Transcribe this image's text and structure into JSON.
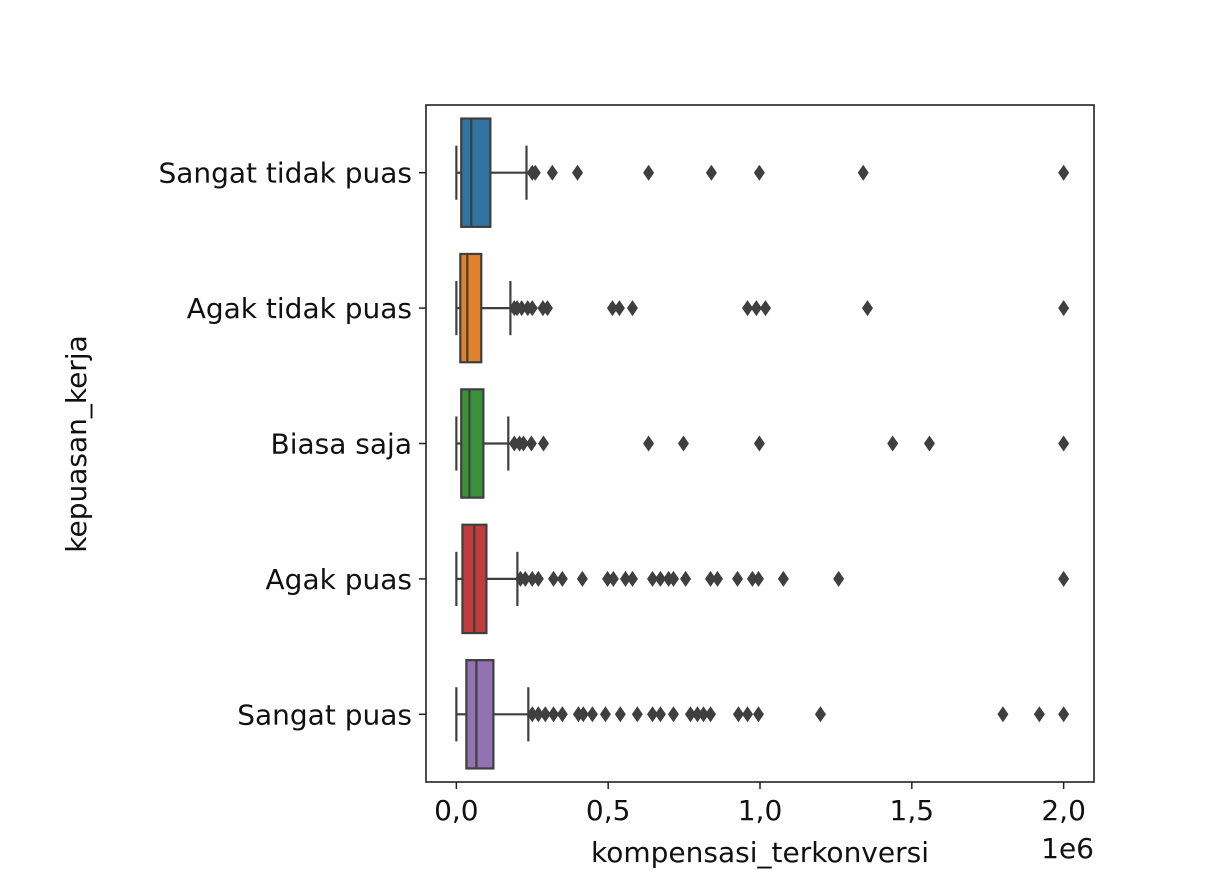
{
  "chart_data": {
    "type": "boxplot",
    "orientation": "horizontal",
    "title": "",
    "xlabel": "kompensasi_terkonversi",
    "ylabel": "kepuasan_kerja",
    "x_offset_label": "1e6",
    "xlim": [
      -100000,
      2100000
    ],
    "x_ticks": [
      0,
      500000,
      1000000,
      1500000,
      2000000
    ],
    "x_tick_labels": [
      "0,0",
      "0,5",
      "1,0",
      "1,5",
      "2,0"
    ],
    "grid": false,
    "line_color": "#3f3f3f",
    "categories": [
      {
        "name": "Sangat tidak puas",
        "color": "#3274a1",
        "whisker_low": 0,
        "q1": 16000,
        "median": 49000,
        "q3": 112000,
        "whisker_high": 231000,
        "outliers": [
          250000,
          260000,
          316000,
          399000,
          633000,
          840000,
          998000,
          1340000,
          2000000
        ]
      },
      {
        "name": "Agak tidak puas",
        "color": "#e1812c",
        "whisker_low": 0,
        "q1": 13000,
        "median": 36000,
        "q3": 82000,
        "whisker_high": 178000,
        "outliers": [
          191000,
          200000,
          215000,
          235000,
          250000,
          285000,
          300000,
          514000,
          537000,
          580000,
          959000,
          988000,
          1018000,
          1354000,
          2000000
        ]
      },
      {
        "name": "Biasa saja",
        "color": "#3a923a",
        "whisker_low": 0,
        "q1": 16000,
        "median": 43000,
        "q3": 89000,
        "whisker_high": 171000,
        "outliers": [
          191000,
          208000,
          221000,
          247000,
          287000,
          633000,
          748000,
          998000,
          1437000,
          1558000,
          2000000
        ]
      },
      {
        "name": "Agak puas",
        "color": "#c03d3e",
        "whisker_low": 0,
        "q1": 20000,
        "median": 59000,
        "q3": 99000,
        "whisker_high": 201000,
        "outliers": [
          211000,
          227000,
          250000,
          270000,
          320000,
          349000,
          415000,
          498000,
          517000,
          557000,
          580000,
          646000,
          672000,
          699000,
          715000,
          755000,
          837000,
          860000,
          926000,
          975000,
          995000,
          1077000,
          1259000,
          2000000
        ]
      },
      {
        "name": "Sangat puas",
        "color": "#9372b2",
        "whisker_low": 0,
        "q1": 33000,
        "median": 66000,
        "q3": 122000,
        "whisker_high": 237000,
        "outliers": [
          250000,
          270000,
          293000,
          320000,
          349000,
          402000,
          418000,
          448000,
          491000,
          540000,
          596000,
          646000,
          672000,
          715000,
          771000,
          794000,
          814000,
          837000,
          929000,
          959000,
          995000,
          1199000,
          1800000,
          1920000,
          2000000
        ]
      }
    ]
  }
}
